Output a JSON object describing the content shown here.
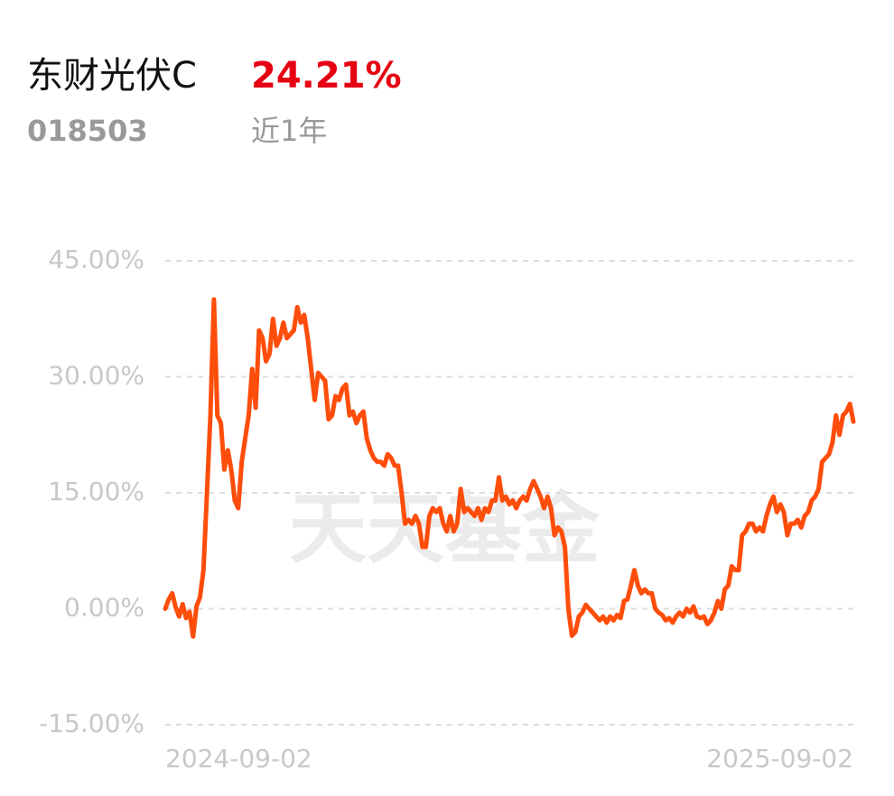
{
  "chart_data": {
    "type": "line",
    "title": "东财光伏C",
    "return_label": "24.21%",
    "code": "018503",
    "period": "近1年",
    "watermark": "天天基金",
    "color": "#ff4d0a",
    "return_color": "#e60012",
    "grid": true,
    "ylim": [
      -15,
      45
    ],
    "yticks": [
      {
        "value": -15,
        "label": "-15.00%"
      },
      {
        "value": 0,
        "label": "0.00%"
      },
      {
        "value": 15,
        "label": "15.00%"
      },
      {
        "value": 30,
        "label": "30.00%"
      },
      {
        "value": 45,
        "label": "45.00%"
      }
    ],
    "xlabels": [
      "2024-09-02",
      "2025-09-02"
    ],
    "values": [
      0,
      1.2,
      2,
      0.2,
      -1,
      0.6,
      -1.2,
      -0.4,
      -3.6,
      0.3,
      1.5,
      5,
      15,
      25,
      40,
      25,
      24,
      18,
      20.5,
      18,
      14,
      13,
      19,
      22,
      25,
      31,
      26,
      36,
      35,
      32,
      33,
      37.5,
      34,
      35,
      37,
      35,
      35.5,
      36,
      39,
      37,
      38,
      35,
      31,
      27,
      30.5,
      30,
      29.5,
      24.5,
      25,
      27.5,
      27,
      28.5,
      29,
      25,
      25.5,
      24,
      25,
      25.5,
      22,
      20.5,
      19.5,
      19,
      19,
      18.5,
      20,
      19.5,
      18.5,
      18.5,
      15,
      11,
      11.5,
      11,
      12,
      11,
      8,
      8,
      12,
      13,
      12.5,
      13,
      11,
      10,
      12,
      10,
      11,
      15.5,
      12.5,
      13,
      12.5,
      12,
      13,
      11.5,
      13,
      12.5,
      14,
      14,
      17,
      14,
      14.5,
      13.5,
      14,
      13,
      14,
      14.5,
      14,
      15.5,
      16.5,
      15.5,
      14.5,
      13,
      14.5,
      13,
      9.5,
      10.5,
      10,
      8,
      0,
      -3.5,
      -3,
      -1,
      -0.5,
      0.5,
      0,
      -0.5,
      -1,
      -1.5,
      -1,
      -1.8,
      -1,
      -1.5,
      -0.8,
      -1.2,
      1,
      1.2,
      3,
      5,
      3,
      2,
      2.5,
      2,
      2,
      0,
      -0.5,
      -0.8,
      -1.5,
      -1.2,
      -1.8,
      -1,
      -0.5,
      -1,
      0,
      -0.5,
      0.3,
      -1,
      -1.2,
      -1,
      -2,
      -1.5,
      -0.5,
      1,
      0,
      2.5,
      3,
      5.5,
      5,
      5,
      9.5,
      10,
      11,
      11,
      10,
      10.5,
      10,
      12,
      13.5,
      14.5,
      12.5,
      13.5,
      12.5,
      9.5,
      11,
      11,
      11.5,
      10.5,
      12,
      12.5,
      14,
      14.5,
      15.5,
      19,
      19.5,
      20,
      21.5,
      25,
      22.5,
      25,
      25.5,
      26.5,
      24.2
    ]
  }
}
